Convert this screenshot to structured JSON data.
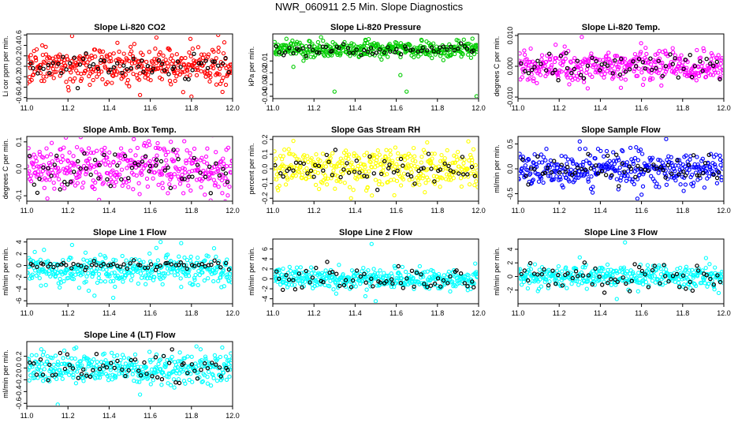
{
  "page_title": "NWR_060911  2.5 Min. Slope Diagnostics",
  "chart_data": [
    {
      "id": "co2",
      "type": "scatter",
      "title": "Slope Li-820 CO2",
      "ylabel": "Li cor ppm per min.",
      "color": "#ff0000",
      "xlim": [
        11.0,
        12.0
      ],
      "xticks": [
        "11.0",
        "11.2",
        "11.4",
        "11.6",
        "11.8",
        "12.0"
      ],
      "ylim": [
        -0.62,
        0.62
      ],
      "yticks": [
        {
          "v": -0.6,
          "t": "-0.6"
        },
        {
          "v": -0.4,
          "t": "-0.4"
        },
        {
          "v": -0.2,
          "t": "-0.2"
        },
        {
          "v": 0,
          "t": "0.0"
        },
        {
          "v": 0.2,
          "t": "0.2"
        },
        {
          "v": 0.4,
          "t": "0.4"
        },
        {
          "v": 0.6,
          "t": "0.6"
        }
      ],
      "spread": 0.18,
      "black_spread": 0.13,
      "outliers": [
        [
          11.8,
          -0.58
        ],
        [
          11.55,
          -0.55
        ],
        [
          11.22,
          0.58
        ],
        [
          11.93,
          0.6
        ],
        [
          11.63,
          0.55
        ]
      ]
    },
    {
      "id": "pressure",
      "type": "scatter",
      "title": "Slope Li-820 Pressure",
      "ylabel": "kPa per min.",
      "color": "#00cc00",
      "xlim": [
        11.0,
        12.0
      ],
      "xticks": [
        "11.0",
        "11.2",
        "11.4",
        "11.6",
        "11.8",
        "12.0"
      ],
      "ylim": [
        -0.042,
        0.013
      ],
      "yticks": [
        {
          "v": -0.04,
          "t": "-0.04"
        },
        {
          "v": -0.03,
          "t": "-0.03"
        },
        {
          "v": -0.02,
          "t": "-0.02"
        },
        {
          "v": -0.01,
          "t": "-0.01"
        }
      ],
      "spread": 0.0035,
      "black_spread": 0.002,
      "outliers": [
        [
          11.3,
          -0.036
        ],
        [
          11.65,
          -0.036
        ],
        [
          11.99,
          -0.04
        ],
        [
          11.62,
          -0.022
        ],
        [
          11.1,
          -0.015
        ],
        [
          11.45,
          0.008
        ],
        [
          11.97,
          0.009
        ]
      ]
    },
    {
      "id": "li820temp",
      "type": "scatter",
      "title": "Slope Li-820 Temp.",
      "ylabel": "degrees C per min.",
      "color": "#ff00ff",
      "xlim": [
        11.0,
        12.0
      ],
      "xticks": [
        "11.0",
        "11.2",
        "11.4",
        "11.6",
        "11.8",
        "12.0"
      ],
      "ylim": [
        -0.0105,
        0.0105
      ],
      "yticks": [
        {
          "v": -0.01,
          "t": "-0.010"
        },
        {
          "v": 0,
          "t": "0.000"
        },
        {
          "v": 0.01,
          "t": "0.010"
        }
      ],
      "spread": 0.0025,
      "black_spread": 0.002,
      "outliers": [
        [
          11.31,
          0.0095
        ],
        [
          11.62,
          0.006
        ],
        [
          11.5,
          -0.007
        ]
      ]
    },
    {
      "id": "ambtemp",
      "type": "scatter",
      "title": "Slope Amb. Box Temp.",
      "ylabel": "degrees C per min.",
      "color": "#ff00ff",
      "xlim": [
        11.0,
        12.0
      ],
      "xticks": [
        "11.0",
        "11.2",
        "11.4",
        "11.6",
        "11.8",
        "12.0"
      ],
      "ylim": [
        -0.12,
        0.12
      ],
      "yticks": [
        {
          "v": -0.1,
          "t": "-0.1"
        },
        {
          "v": 0,
          "t": "0.0"
        },
        {
          "v": 0.1,
          "t": "0.1"
        }
      ],
      "spread": 0.045,
      "black_spread": 0.035,
      "outliers": [
        [
          11.1,
          -0.11
        ],
        [
          11.52,
          0.11
        ],
        [
          11.95,
          -0.09
        ],
        [
          11.7,
          0.1
        ]
      ]
    },
    {
      "id": "rh",
      "type": "scatter",
      "title": "Slope Gas Stream RH",
      "ylabel": "percent per min.",
      "color": "#ffff00",
      "xlim": [
        11.0,
        12.0
      ],
      "xticks": [
        "11.0",
        "11.2",
        "11.4",
        "11.6",
        "11.8",
        "12.0"
      ],
      "ylim": [
        -0.22,
        0.22
      ],
      "yticks": [
        {
          "v": -0.2,
          "t": "-0.2"
        },
        {
          "v": -0.1,
          "t": "-0.1"
        },
        {
          "v": 0,
          "t": "0.0"
        },
        {
          "v": 0.1,
          "t": "0.1"
        },
        {
          "v": 0.2,
          "t": "0.2"
        }
      ],
      "spread": 0.07,
      "black_spread": 0.05,
      "outliers": [
        [
          11.1,
          0.19
        ],
        [
          11.38,
          -0.2
        ],
        [
          11.75,
          0.18
        ]
      ]
    },
    {
      "id": "sampleflow",
      "type": "scatter",
      "title": "Slope Sample Flow",
      "ylabel": "ml/min per min.",
      "color": "#0000ff",
      "xlim": [
        11.0,
        12.0
      ],
      "xticks": [
        "11.0",
        "11.2",
        "11.4",
        "11.6",
        "11.8",
        "12.0"
      ],
      "ylim": [
        -0.65,
        0.65
      ],
      "yticks": [
        {
          "v": -0.5,
          "t": "-0.5"
        },
        {
          "v": 0,
          "t": "0.0"
        },
        {
          "v": 0.5,
          "t": "0.5"
        }
      ],
      "spread": 0.18,
      "black_spread": 0.14,
      "outliers": [
        [
          11.58,
          -0.6
        ],
        [
          11.72,
          0.6
        ],
        [
          11.3,
          0.55
        ]
      ]
    },
    {
      "id": "line1",
      "type": "scatter",
      "title": "Slope Line 1 Flow",
      "ylabel": "ml/min per min.",
      "color": "#00ffff",
      "xlim": [
        11.0,
        12.0
      ],
      "xticks": [
        "11.0",
        "11.2",
        "11.4",
        "11.6",
        "11.8",
        "12.0"
      ],
      "ylim": [
        -6.5,
        4.5
      ],
      "yticks": [
        {
          "v": -6,
          "t": "-6"
        },
        {
          "v": -4,
          "t": "-4"
        },
        {
          "v": -2,
          "t": "-2"
        },
        {
          "v": 0,
          "t": "0"
        },
        {
          "v": 2,
          "t": "2"
        },
        {
          "v": 4,
          "t": "4"
        }
      ],
      "spread": 1.3,
      "black_spread": 0.4,
      "center": -0.8,
      "black_center": 0.1,
      "outliers": [
        [
          11.22,
          3.5
        ],
        [
          11.65,
          4
        ],
        [
          11.42,
          -5.5
        ],
        [
          11.75,
          3.8
        ]
      ]
    },
    {
      "id": "line2",
      "type": "scatter",
      "title": "Slope Line 2 Flow",
      "ylabel": "ml/min per min.",
      "color": "#00ffff",
      "xlim": [
        11.0,
        12.0
      ],
      "xticks": [
        "11.0",
        "11.2",
        "11.4",
        "11.6",
        "11.8",
        "12.0"
      ],
      "ylim": [
        -5,
        8
      ],
      "yticks": [
        {
          "v": -4,
          "t": "-4"
        },
        {
          "v": -2,
          "t": "-2"
        },
        {
          "v": 0,
          "t": "0"
        },
        {
          "v": 2,
          "t": "2"
        },
        {
          "v": 4,
          "t": "4"
        },
        {
          "v": 6,
          "t": "6"
        }
      ],
      "spread": 1.0,
      "black_spread": 1.3,
      "outliers": [
        [
          11.48,
          7
        ],
        [
          11.5,
          -4.5
        ],
        [
          11.45,
          -3.5
        ]
      ]
    },
    {
      "id": "line3",
      "type": "scatter",
      "title": "Slope Line 3 Flow",
      "ylabel": "ml/min per min.",
      "color": "#00ffff",
      "xlim": [
        11.0,
        12.0
      ],
      "xticks": [
        "11.0",
        "11.2",
        "11.4",
        "11.6",
        "11.8",
        "12.0"
      ],
      "ylim": [
        -4,
        5.5
      ],
      "yticks": [
        {
          "v": -2,
          "t": "-2"
        },
        {
          "v": 0,
          "t": "0"
        },
        {
          "v": 2,
          "t": "2"
        },
        {
          "v": 4,
          "t": "4"
        }
      ],
      "spread": 0.8,
      "black_spread": 1.0,
      "outliers": [
        [
          11.52,
          5
        ],
        [
          11.48,
          -3.3
        ],
        [
          11.3,
          2.8
        ]
      ]
    },
    {
      "id": "line4",
      "type": "scatter",
      "title": "Slope Line 4 (LT) Flow",
      "ylabel": "ml/min per min.",
      "color": "#00ffff",
      "xlim": [
        11.0,
        12.0
      ],
      "xticks": [
        "11.0",
        "11.2",
        "11.4",
        "11.6",
        "11.8",
        "12.0"
      ],
      "ylim": [
        -0.65,
        0.45
      ],
      "yticks": [
        {
          "v": -0.6,
          "t": "-0.6"
        },
        {
          "v": -0.4,
          "t": "-0.4"
        },
        {
          "v": -0.2,
          "t": "-0.2"
        },
        {
          "v": 0,
          "t": "0.0"
        },
        {
          "v": 0.2,
          "t": "0.2"
        }
      ],
      "spread": 0.13,
      "black_spread": 0.12,
      "outliers": [
        [
          11.15,
          -0.62
        ],
        [
          11.55,
          -0.45
        ],
        [
          11.95,
          0.35
        ],
        [
          11.07,
          0.32
        ]
      ]
    }
  ]
}
